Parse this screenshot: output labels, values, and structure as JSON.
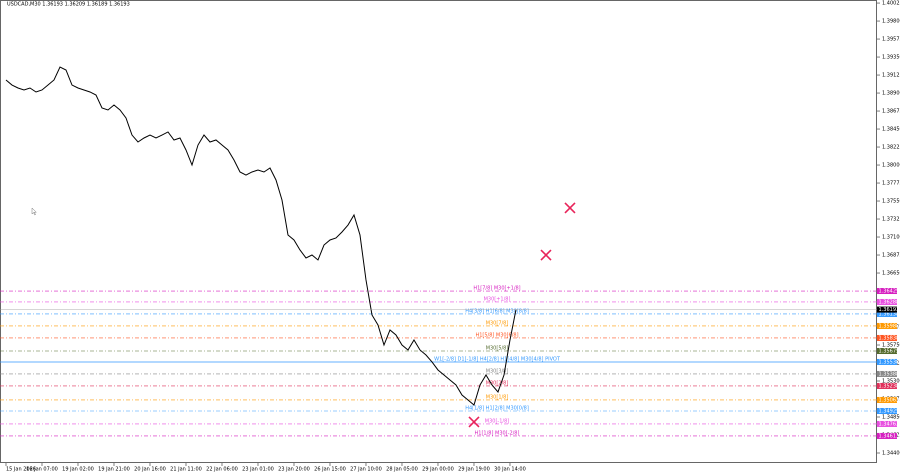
{
  "chart_data": {
    "type": "line",
    "title": "USDCAD,M30  1.36193 1.36209 1.36189 1.36193",
    "xlim": [
      -1,
      145.17
    ],
    "ylim": [
      1.34275,
      1.40063
    ],
    "xticks": [
      {
        "value": 0,
        "label": "15 Jan 2026"
      },
      {
        "value": 6,
        "label": "16 Jan 07:00"
      },
      {
        "value": 12,
        "label": "19 Jan 02:00"
      },
      {
        "value": 18,
        "label": "19 Jan 21:00"
      },
      {
        "value": 24,
        "label": "20 Jan 16:00"
      },
      {
        "value": 30,
        "label": "21 Jan 11:00"
      },
      {
        "value": 36,
        "label": "22 Jan 06:00"
      },
      {
        "value": 42,
        "label": "23 Jan 01:00"
      },
      {
        "value": 48,
        "label": "23 Jan 20:00"
      },
      {
        "value": 54,
        "label": "26 Jan 15:00"
      },
      {
        "value": 60,
        "label": "27 Jan 10:00"
      },
      {
        "value": 66,
        "label": "28 Jan 05:00"
      },
      {
        "value": 72,
        "label": "29 Jan 00:00"
      },
      {
        "value": 78,
        "label": "29 Jan 19:00"
      },
      {
        "value": 84,
        "label": "30 Jan 14:00"
      }
    ],
    "yticks": [
      {
        "value": 1.40025,
        "label": "1.40025"
      },
      {
        "value": 1.398,
        "label": "1.39800"
      },
      {
        "value": 1.39575,
        "label": "1.39575"
      },
      {
        "value": 1.3935,
        "label": "1.39350"
      },
      {
        "value": 1.39125,
        "label": "1.39125"
      },
      {
        "value": 1.389,
        "label": "1.38900"
      },
      {
        "value": 1.38675,
        "label": "1.38675"
      },
      {
        "value": 1.3845,
        "label": "1.38450"
      },
      {
        "value": 1.38225,
        "label": "1.38225"
      },
      {
        "value": 1.38,
        "label": "1.38000"
      },
      {
        "value": 1.37775,
        "label": "1.37775"
      },
      {
        "value": 1.3755,
        "label": "1.37550"
      },
      {
        "value": 1.37325,
        "label": "1.37325"
      },
      {
        "value": 1.371,
        "label": "1.37100"
      },
      {
        "value": 1.36875,
        "label": "1.36875"
      },
      {
        "value": 1.3665,
        "label": "1.36650"
      },
      {
        "value": 1.35975,
        "label": "1.35975"
      },
      {
        "value": 1.3575,
        "label": "1.35750"
      },
      {
        "value": 1.35525,
        "label": "1.35525"
      },
      {
        "value": 1.353,
        "label": "1.35300"
      },
      {
        "value": 1.35075,
        "label": "1.35075"
      },
      {
        "value": 1.3485,
        "label": "1.34850"
      },
      {
        "value": 1.34625,
        "label": "1.34625"
      },
      {
        "value": 1.344,
        "label": "1.34400"
      }
    ],
    "series": [
      {
        "color": "#000000",
        "x": [
          0,
          1,
          2,
          3,
          4,
          5,
          6,
          7,
          8,
          9,
          10,
          11,
          12,
          13,
          14,
          15,
          16,
          17,
          18,
          19,
          20,
          21,
          22,
          23,
          24,
          25,
          26,
          27,
          28,
          29,
          30,
          31,
          32,
          33,
          34,
          35,
          36,
          37,
          38,
          39,
          40,
          41,
          42,
          43,
          44,
          45,
          46,
          47,
          48,
          49,
          50,
          51,
          52,
          53,
          54,
          55,
          56,
          57,
          58,
          59,
          60,
          61,
          62,
          63,
          64,
          65,
          66,
          67,
          68,
          69,
          70,
          71,
          72,
          73,
          74,
          75,
          76,
          77,
          78,
          79,
          80,
          81,
          82,
          83,
          84,
          85
        ],
        "values": [
          1.39063,
          1.39,
          1.38963,
          1.38938,
          1.38963,
          1.38913,
          1.38938,
          1.39,
          1.39063,
          1.39225,
          1.39188,
          1.39,
          1.38963,
          1.38938,
          1.38913,
          1.38875,
          1.38713,
          1.38688,
          1.3875,
          1.38688,
          1.38588,
          1.38375,
          1.38288,
          1.38338,
          1.38375,
          1.38338,
          1.38375,
          1.38413,
          1.38313,
          1.38338,
          1.38188,
          1.38,
          1.3825,
          1.38375,
          1.38288,
          1.38313,
          1.3825,
          1.38188,
          1.38063,
          1.37913,
          1.37875,
          1.37913,
          1.37938,
          1.37913,
          1.37963,
          1.37813,
          1.37563,
          1.37125,
          1.37063,
          1.36938,
          1.36838,
          1.36875,
          1.36813,
          1.37,
          1.37063,
          1.37088,
          1.37163,
          1.3725,
          1.37375,
          1.37125,
          1.36563,
          1.36125,
          1.36,
          1.3575,
          1.35938,
          1.35875,
          1.3575,
          1.35688,
          1.35813,
          1.35688,
          1.35625,
          1.35538,
          1.35438,
          1.35375,
          1.35313,
          1.3525,
          1.35125,
          1.35063,
          1.35,
          1.3525,
          1.35375,
          1.3525,
          1.35163,
          1.35375,
          1.35813,
          1.36193
        ]
      }
    ],
    "last_price": 1.36193,
    "markers": {
      "color": "#e8245a",
      "x": [
        94,
        90,
        78
      ],
      "values": [
        1.37463,
        1.36875,
        1.34788
      ]
    },
    "levels": [
      {
        "name": "H1[7/8] M30[+1/8]",
        "value": 1.36425,
        "color": "#d61fc0"
      },
      {
        "name": "M30[+1/8]",
        "value": 1.36288,
        "color": "#e84fe0"
      },
      {
        "name": "H4[3/8] H1[6/8] M30[8/8]",
        "value": 1.36138,
        "color": "#3399ff"
      },
      {
        "name": "M30[7/8]",
        "value": 1.35988,
        "color": "#ff9900"
      },
      {
        "name": "H1[5/8] M30[6/8]",
        "value": 1.35838,
        "color": "#ff5522"
      },
      {
        "name": "M30[5/8]",
        "value": 1.35675,
        "color": "#556b2f"
      },
      {
        "name": "W1[-2/8] D1[-1/8] H4[2/8] H1[4/8] M30[4/8] PIVOT",
        "value": 1.35538,
        "color": "#3399ff"
      },
      {
        "name": "M30[3/8]",
        "value": 1.35388,
        "color": "#888888"
      },
      {
        "name": "M30[2/8]",
        "value": 1.35238,
        "color": "#e0305a"
      },
      {
        "name": "M30[1/8]",
        "value": 1.35063,
        "color": "#ff9900"
      },
      {
        "name": "H4[1/8] H1[2/8] M30[0/8]",
        "value": 1.34925,
        "color": "#3399ff"
      },
      {
        "name": "M30[-1/8]",
        "value": 1.34763,
        "color": "#e84fe0"
      },
      {
        "name": "H1[1/8] M30[-2/8]",
        "value": 1.34613,
        "color": "#d61fc0"
      }
    ]
  }
}
